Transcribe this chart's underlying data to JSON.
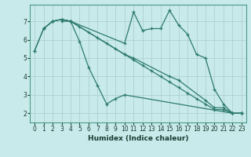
{
  "xlabel": "Humidex (Indice chaleur)",
  "background_color": "#c8eaea",
  "grid_color": "#b0d0d0",
  "line_color": "#2d7a6e",
  "xlim": [
    -0.5,
    23.5
  ],
  "ylim": [
    1.5,
    7.9
  ],
  "xticks": [
    0,
    1,
    2,
    3,
    4,
    5,
    6,
    7,
    8,
    9,
    10,
    11,
    12,
    13,
    14,
    15,
    16,
    17,
    18,
    19,
    20,
    21,
    22,
    23
  ],
  "yticks": [
    2,
    3,
    4,
    5,
    6,
    7
  ],
  "lines": [
    {
      "x": [
        1,
        2,
        3,
        4,
        5,
        6,
        7,
        8,
        9,
        10,
        22,
        23
      ],
      "y": [
        6.6,
        7.0,
        7.1,
        7.0,
        5.9,
        4.5,
        3.5,
        2.5,
        2.8,
        3.0,
        2.0,
        2.0
      ]
    },
    {
      "x": [
        0,
        1,
        2,
        3,
        4,
        5,
        6,
        7,
        8,
        9,
        10,
        11,
        12,
        13,
        14,
        15,
        16,
        17,
        18,
        19,
        20,
        21,
        22,
        23
      ],
      "y": [
        5.4,
        6.6,
        7.0,
        7.1,
        7.0,
        6.7,
        6.4,
        6.1,
        5.8,
        5.5,
        5.2,
        4.9,
        4.6,
        4.3,
        4.0,
        3.7,
        3.4,
        3.1,
        2.8,
        2.5,
        2.2,
        2.2,
        2.0,
        2.0
      ]
    },
    {
      "x": [
        0,
        1,
        2,
        3,
        4,
        10,
        11,
        12,
        13,
        14,
        15,
        16,
        17,
        18,
        19,
        20,
        21,
        22,
        23
      ],
      "y": [
        5.4,
        6.6,
        7.0,
        7.1,
        7.0,
        5.8,
        7.5,
        6.5,
        6.6,
        6.6,
        7.6,
        6.8,
        6.3,
        5.2,
        5.0,
        3.3,
        2.5,
        2.0,
        2.0
      ]
    },
    {
      "x": [
        3,
        4,
        10,
        11,
        15,
        16,
        19,
        20,
        21,
        22,
        23
      ],
      "y": [
        7.0,
        7.0,
        5.2,
        5.0,
        4.0,
        3.8,
        2.7,
        2.3,
        2.3,
        2.0,
        2.0
      ]
    }
  ]
}
